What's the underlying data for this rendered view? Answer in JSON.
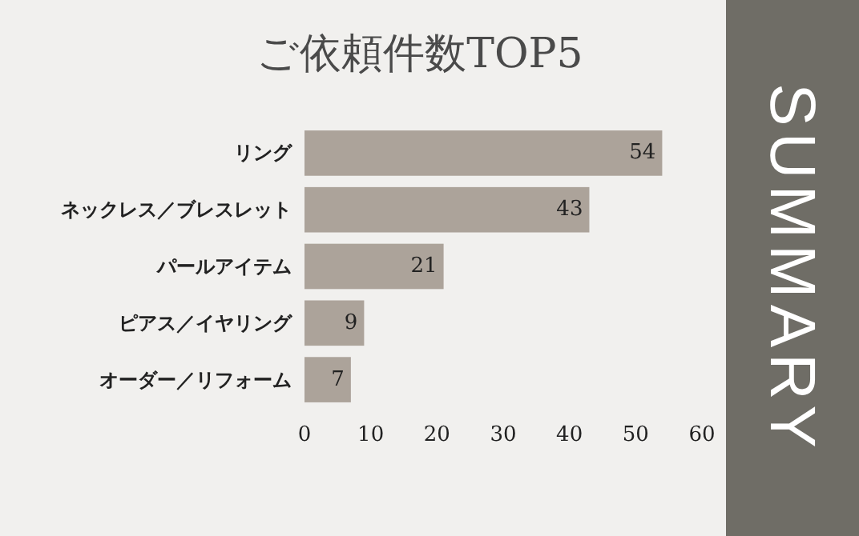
{
  "chart_data": {
    "type": "bar",
    "orientation": "horizontal",
    "title": "ご依頼件数TOP5",
    "categories": [
      "リング",
      "ネックレス／ブレスレット",
      "パールアイテム",
      "ピアス／イヤリング",
      "オーダー／リフォーム"
    ],
    "values": [
      54,
      43,
      21,
      9,
      7
    ],
    "color": "#aca39a",
    "data_labels": true,
    "xlim": [
      0,
      60
    ],
    "xticks": [
      0,
      10,
      20,
      30,
      40,
      50,
      60
    ],
    "grid": false,
    "annotations": [
      "SUMMARY"
    ]
  }
}
